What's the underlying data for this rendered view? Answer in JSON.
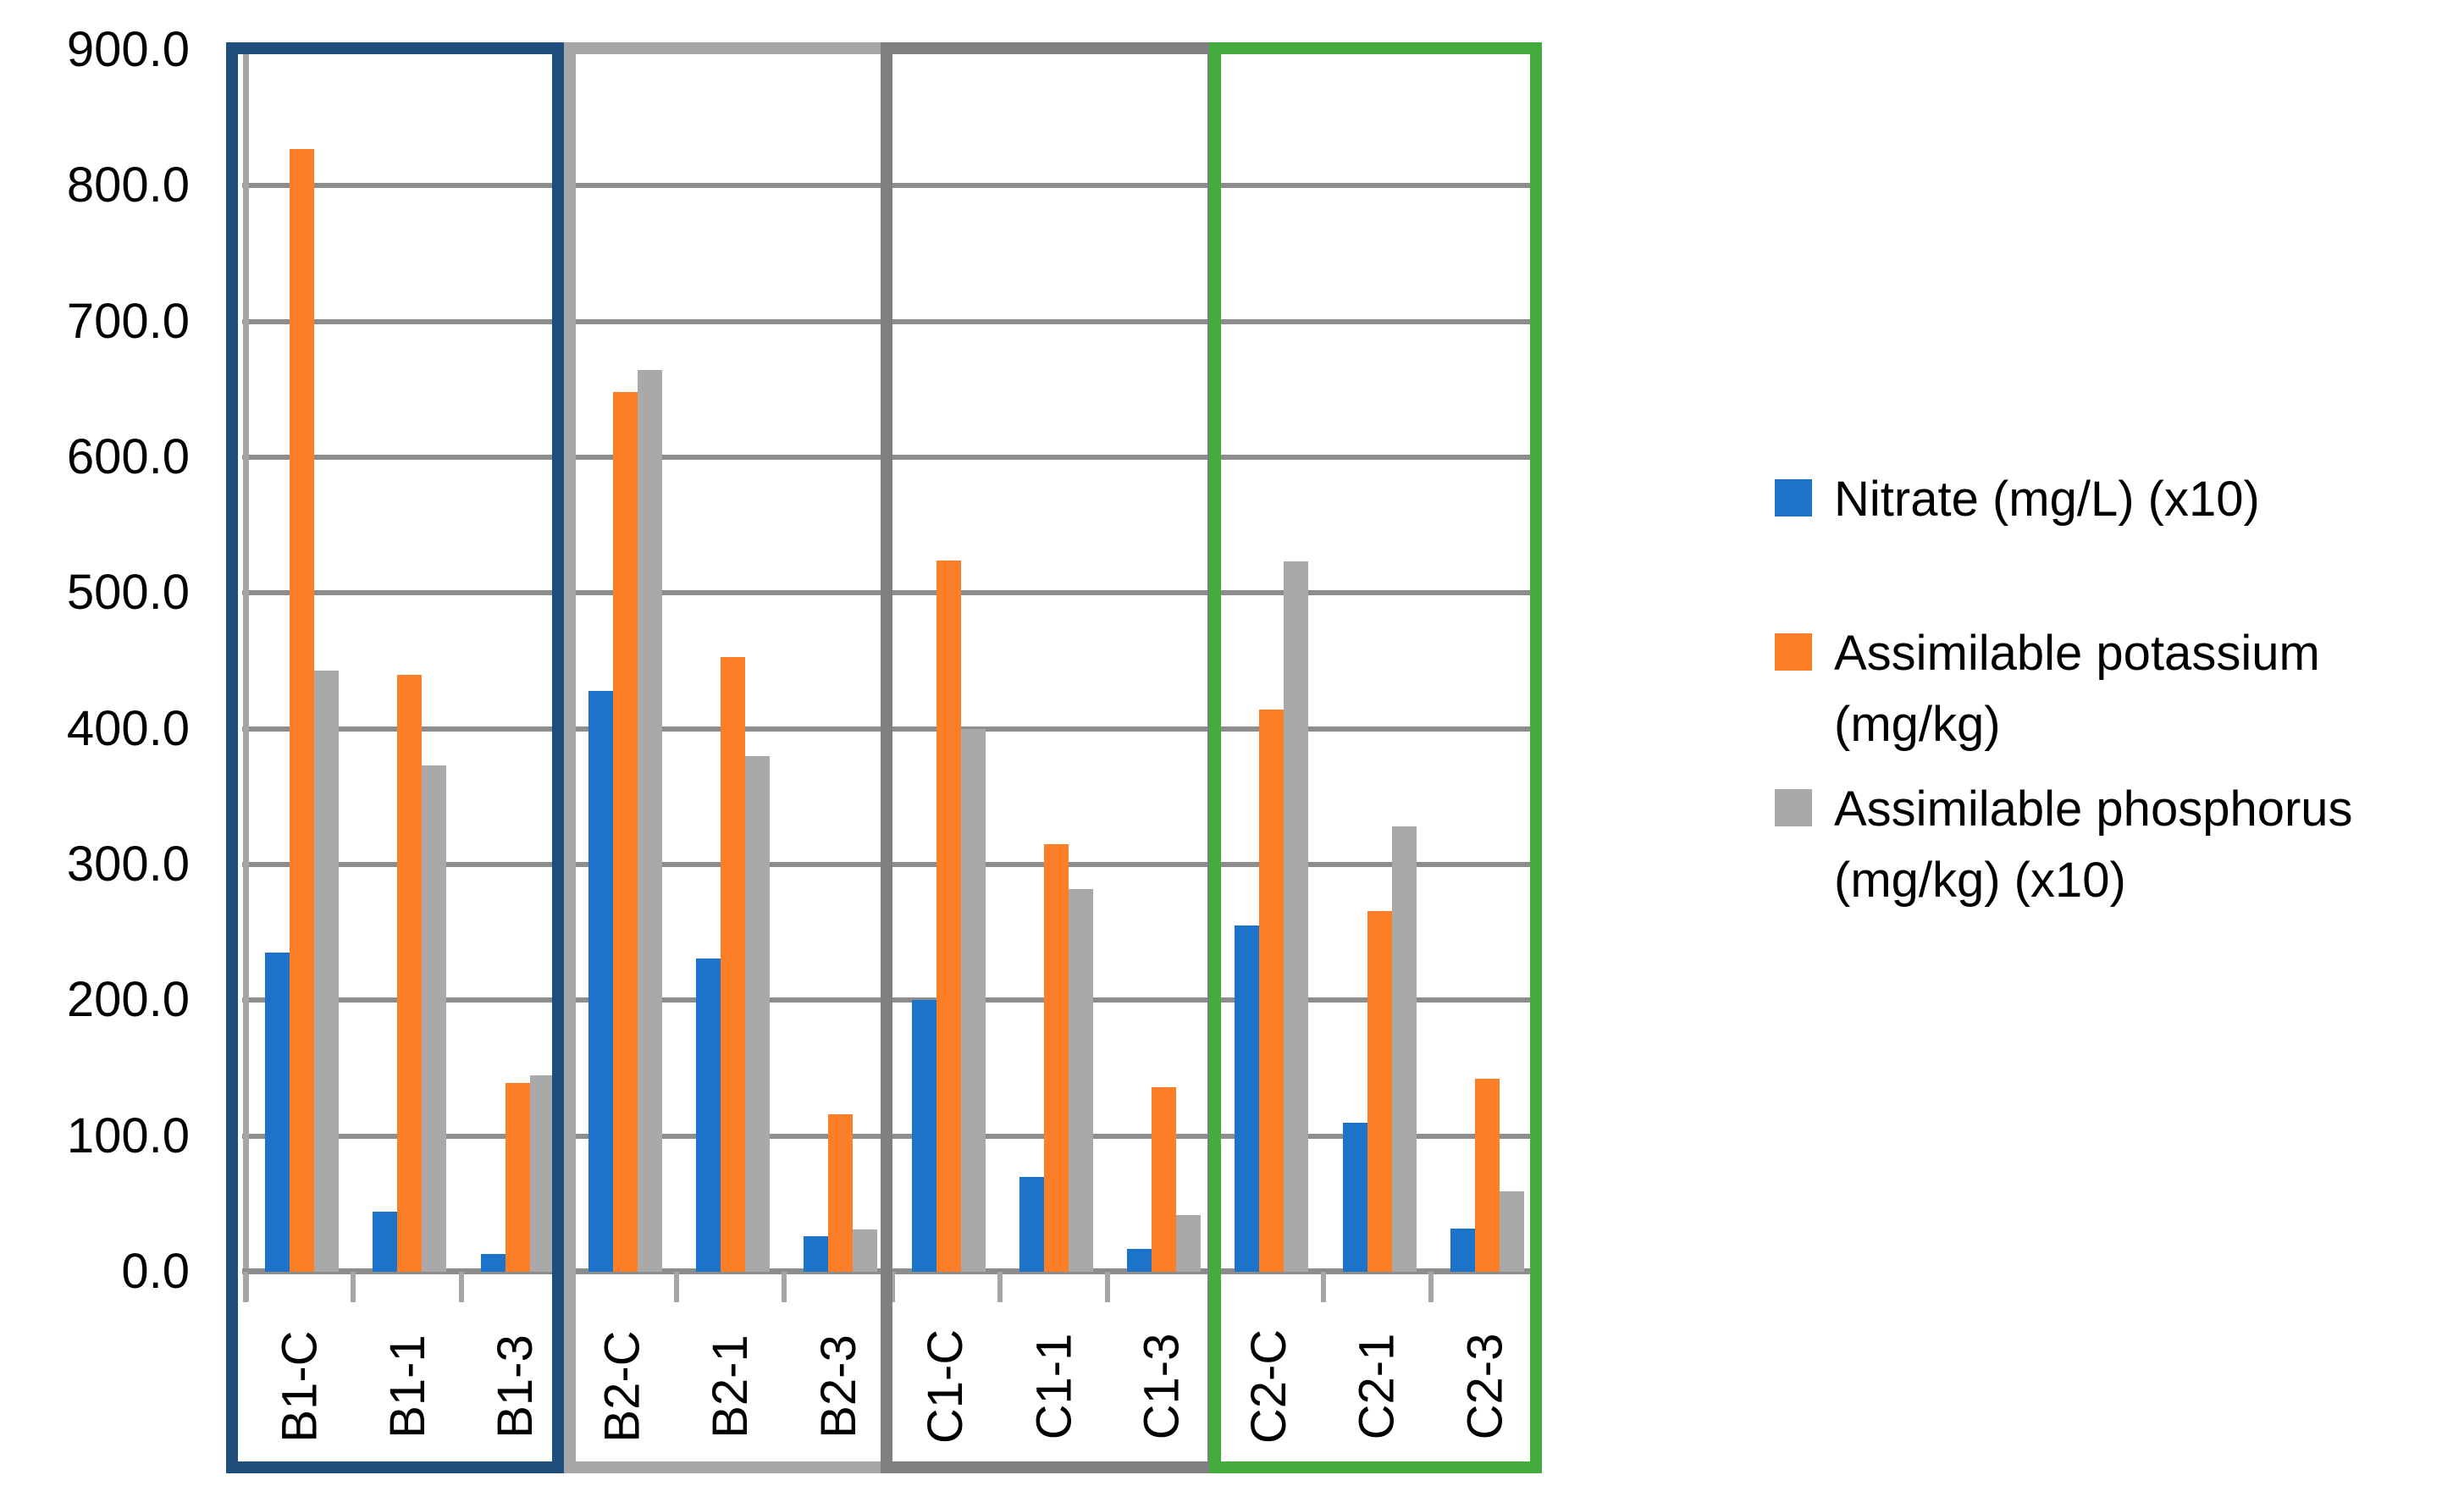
{
  "chart_data": {
    "type": "bar",
    "title": "",
    "xlabel": "",
    "ylabel": "",
    "ylim": [
      0,
      900
    ],
    "ytick_step": 100,
    "ytick_labels": [
      "0.0",
      "100.0",
      "200.0",
      "300.0",
      "400.0",
      "500.0",
      "600.0",
      "700.0",
      "800.0",
      "900.0"
    ],
    "grid": true,
    "legend_position": "right",
    "categories": [
      "B1-C",
      "B1-1",
      "B1-3",
      "B2-C",
      "B2-1",
      "B2-3",
      "C1-C",
      "C1-1",
      "C1-3",
      "C2-C",
      "C2-1",
      "C2-3"
    ],
    "series": [
      {
        "name": "Nitrate (mg/L) (x10)",
        "color": "#1B74C9",
        "values": [
          235,
          44,
          13,
          428,
          231,
          26,
          200,
          70,
          17,
          255,
          110,
          32
        ]
      },
      {
        "name": "Assimilable potassium (mg/kg)",
        "color": "#FC7E26",
        "values": [
          827,
          440,
          139,
          648,
          453,
          116,
          524,
          315,
          136,
          414,
          266,
          142
        ]
      },
      {
        "name": "Assimilable phosphorus (mg/kg) (x10)",
        "color": "#A9A9A9",
        "values": [
          443,
          373,
          145,
          664,
          380,
          31,
          400,
          282,
          42,
          523,
          328,
          59
        ]
      }
    ],
    "group_boxes": [
      {
        "name": "B1",
        "color": "#1F4E7B",
        "from_category": 0,
        "to_category": 2
      },
      {
        "name": "B2",
        "color": "#A6A6A6",
        "from_category": 3,
        "to_category": 5
      },
      {
        "name": "C1",
        "color": "#7F7F7F",
        "from_category": 6,
        "to_category": 8
      },
      {
        "name": "C2",
        "color": "#43AC3C",
        "from_category": 9,
        "to_category": 11
      }
    ]
  },
  "legend": {
    "items": [
      {
        "line1": "Nitrate (mg/L) (x10)",
        "line2": ""
      },
      {
        "line1": "Assimilable potassium",
        "line2": "(mg/kg)"
      },
      {
        "line1": "Assimilable phosphorus",
        "line2": "(mg/kg) (x10)"
      }
    ]
  }
}
